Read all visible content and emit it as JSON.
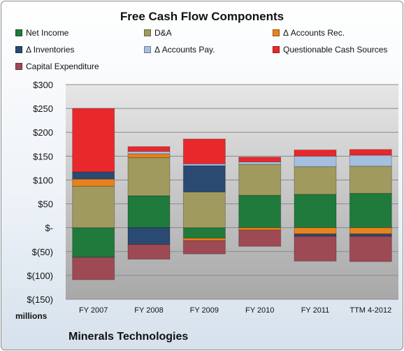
{
  "chart_data": {
    "type": "bar",
    "stacked": true,
    "title": "Free Cash Flow Components",
    "ylabel": "millions",
    "company": "Minerals Technologies",
    "categories": [
      "FY 2007",
      "FY 2008",
      "FY 2009",
      "FY 2010",
      "FY 2011",
      "TTM 4-2012"
    ],
    "ylim": [
      -150,
      300
    ],
    "yticks": [
      300,
      250,
      200,
      150,
      100,
      50,
      0,
      -50,
      -100,
      -150
    ],
    "ytick_labels": [
      "$300",
      "$250",
      "$200",
      "$150",
      "$100",
      "$50",
      "$-",
      "$(50)",
      "$(100)",
      "$(150)"
    ],
    "grid": true,
    "legend_position": "top",
    "series": [
      {
        "name": "Net Income",
        "color": "#1f7a3c",
        "values": [
          -62,
          67,
          -22,
          68,
          70,
          72
        ]
      },
      {
        "name": "D&A",
        "color": "#a09a5e",
        "values": [
          87,
          80,
          75,
          65,
          58,
          57
        ]
      },
      {
        "name": "Δ Accounts Rec.",
        "color": "#e8821c",
        "values": [
          15,
          8,
          -5,
          -5,
          -13,
          -13
        ]
      },
      {
        "name": "Δ Inventories",
        "color": "#2a4a72",
        "values": [
          15,
          -35,
          55,
          0,
          -5,
          -5
        ]
      },
      {
        "name": "Δ Accounts Pay.",
        "color": "#a6bfdf",
        "values": [
          0,
          5,
          4,
          5,
          22,
          23
        ]
      },
      {
        "name": "Questionable Cash Sources",
        "color": "#e8282b",
        "values": [
          133,
          10,
          52,
          10,
          13,
          12
        ]
      },
      {
        "name": "Capital Expenditure",
        "color": "#9e4a54",
        "values": [
          -47,
          -31,
          -28,
          -34,
          -52,
          -53
        ]
      }
    ]
  }
}
